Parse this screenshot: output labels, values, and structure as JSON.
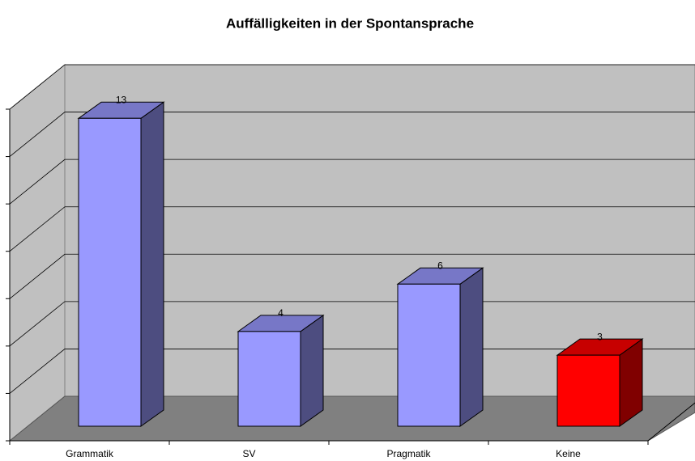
{
  "chart_data": {
    "type": "bar3d",
    "title": "Auffälligkeiten in der Spontansprache",
    "categories": [
      "Grammatik",
      "SV",
      "Pragmatik",
      "Keine"
    ],
    "values": [
      13,
      4,
      6,
      3
    ],
    "colors": [
      "#9999ff",
      "#9999ff",
      "#9999ff",
      "#ff0000"
    ],
    "ylim": [
      0,
      14
    ],
    "yticks": [
      0,
      2,
      4,
      6,
      8,
      10,
      12,
      14
    ],
    "grid": true
  }
}
